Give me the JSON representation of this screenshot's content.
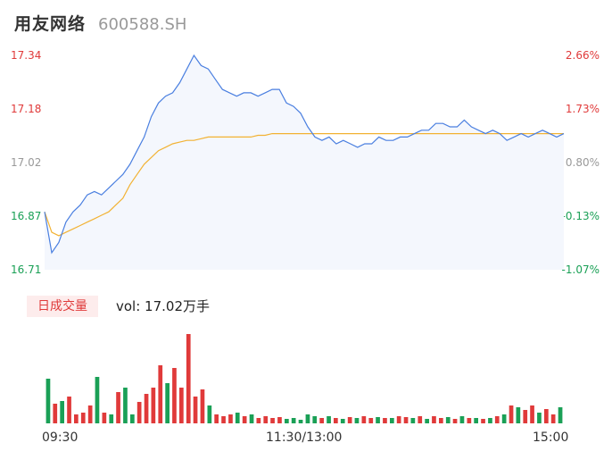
{
  "header": {
    "name": "用友网络",
    "code": "600588.SH"
  },
  "colors": {
    "up": "#e03a3a",
    "down": "#1aa056",
    "neutral": "#999999",
    "price_line": "#4a7fe0",
    "avg_line": "#f2b233",
    "area_fill": "#f4f7fd"
  },
  "volume": {
    "tab_label": "日成交量",
    "summary": "vol: 17.02万手"
  },
  "chart_data": {
    "type": "line",
    "title": "",
    "price_axis": {
      "ticks": [
        "17.34",
        "17.18",
        "17.02",
        "16.87",
        "16.71"
      ],
      "ylim": [
        16.71,
        17.34
      ]
    },
    "pct_axis": {
      "ticks": [
        "2.66%",
        "1.73%",
        "0.80%",
        "-0.13%",
        "-1.07%"
      ]
    },
    "x_ticks": [
      "09:30",
      "11:30/13:00",
      "15:00"
    ],
    "series": [
      {
        "key": "price",
        "values": [
          16.88,
          16.76,
          16.79,
          16.85,
          16.88,
          16.9,
          16.93,
          16.94,
          16.93,
          16.95,
          16.97,
          16.99,
          17.02,
          17.06,
          17.1,
          17.16,
          17.2,
          17.22,
          17.23,
          17.26,
          17.3,
          17.34,
          17.31,
          17.3,
          17.27,
          17.24,
          17.23,
          17.22,
          17.23,
          17.23,
          17.22,
          17.23,
          17.24,
          17.24,
          17.2,
          17.19,
          17.17,
          17.13,
          17.1,
          17.09,
          17.1,
          17.08,
          17.09,
          17.08,
          17.07,
          17.08,
          17.08,
          17.1,
          17.09,
          17.09,
          17.1,
          17.1,
          17.11,
          17.12,
          17.12,
          17.14,
          17.14,
          17.13,
          17.13,
          17.15,
          17.13,
          17.12,
          17.11,
          17.12,
          17.11,
          17.09,
          17.1,
          17.11,
          17.1,
          17.11,
          17.12,
          17.11,
          17.1,
          17.11
        ]
      },
      {
        "key": "average",
        "values": [
          16.88,
          16.82,
          16.81,
          16.82,
          16.83,
          16.84,
          16.85,
          16.86,
          16.87,
          16.88,
          16.9,
          16.92,
          16.96,
          16.99,
          17.02,
          17.04,
          17.06,
          17.07,
          17.08,
          17.085,
          17.09,
          17.09,
          17.095,
          17.1,
          17.1,
          17.1,
          17.1,
          17.1,
          17.1,
          17.1,
          17.105,
          17.105,
          17.11,
          17.11,
          17.11,
          17.11,
          17.11,
          17.11,
          17.11,
          17.11,
          17.11,
          17.11,
          17.11,
          17.11,
          17.11,
          17.11,
          17.11,
          17.11,
          17.11,
          17.11,
          17.11,
          17.11,
          17.11,
          17.11,
          17.11,
          17.11,
          17.11,
          17.11,
          17.11,
          17.11,
          17.11,
          17.11,
          17.11,
          17.11,
          17.11,
          17.11,
          17.11,
          17.11,
          17.11,
          17.11,
          17.11,
          17.11,
          17.11,
          17.11
        ]
      }
    ],
    "volume_bars": [
      {
        "v": 50,
        "d": "down"
      },
      {
        "v": 22,
        "d": "up"
      },
      {
        "v": 25,
        "d": "down"
      },
      {
        "v": 30,
        "d": "up"
      },
      {
        "v": 10,
        "d": "up"
      },
      {
        "v": 12,
        "d": "up"
      },
      {
        "v": 20,
        "d": "up"
      },
      {
        "v": 52,
        "d": "down"
      },
      {
        "v": 12,
        "d": "up"
      },
      {
        "v": 10,
        "d": "down"
      },
      {
        "v": 35,
        "d": "up"
      },
      {
        "v": 40,
        "d": "down"
      },
      {
        "v": 10,
        "d": "down"
      },
      {
        "v": 24,
        "d": "up"
      },
      {
        "v": 33,
        "d": "up"
      },
      {
        "v": 40,
        "d": "up"
      },
      {
        "v": 65,
        "d": "up"
      },
      {
        "v": 45,
        "d": "down"
      },
      {
        "v": 62,
        "d": "up"
      },
      {
        "v": 40,
        "d": "up"
      },
      {
        "v": 100,
        "d": "up"
      },
      {
        "v": 30,
        "d": "up"
      },
      {
        "v": 38,
        "d": "up"
      },
      {
        "v": 20,
        "d": "down"
      },
      {
        "v": 10,
        "d": "up"
      },
      {
        "v": 8,
        "d": "up"
      },
      {
        "v": 10,
        "d": "up"
      },
      {
        "v": 12,
        "d": "down"
      },
      {
        "v": 8,
        "d": "up"
      },
      {
        "v": 10,
        "d": "down"
      },
      {
        "v": 6,
        "d": "up"
      },
      {
        "v": 8,
        "d": "up"
      },
      {
        "v": 6,
        "d": "up"
      },
      {
        "v": 7,
        "d": "up"
      },
      {
        "v": 5,
        "d": "down"
      },
      {
        "v": 6,
        "d": "down"
      },
      {
        "v": 4,
        "d": "down"
      },
      {
        "v": 10,
        "d": "down"
      },
      {
        "v": 8,
        "d": "down"
      },
      {
        "v": 6,
        "d": "up"
      },
      {
        "v": 8,
        "d": "down"
      },
      {
        "v": 6,
        "d": "up"
      },
      {
        "v": 5,
        "d": "down"
      },
      {
        "v": 7,
        "d": "up"
      },
      {
        "v": 6,
        "d": "down"
      },
      {
        "v": 8,
        "d": "up"
      },
      {
        "v": 6,
        "d": "up"
      },
      {
        "v": 7,
        "d": "down"
      },
      {
        "v": 6,
        "d": "up"
      },
      {
        "v": 6,
        "d": "down"
      },
      {
        "v": 8,
        "d": "up"
      },
      {
        "v": 7,
        "d": "up"
      },
      {
        "v": 6,
        "d": "down"
      },
      {
        "v": 8,
        "d": "up"
      },
      {
        "v": 5,
        "d": "down"
      },
      {
        "v": 8,
        "d": "up"
      },
      {
        "v": 6,
        "d": "up"
      },
      {
        "v": 7,
        "d": "down"
      },
      {
        "v": 5,
        "d": "up"
      },
      {
        "v": 8,
        "d": "down"
      },
      {
        "v": 6,
        "d": "up"
      },
      {
        "v": 6,
        "d": "down"
      },
      {
        "v": 5,
        "d": "up"
      },
      {
        "v": 6,
        "d": "down"
      },
      {
        "v": 8,
        "d": "up"
      },
      {
        "v": 10,
        "d": "down"
      },
      {
        "v": 20,
        "d": "up"
      },
      {
        "v": 18,
        "d": "down"
      },
      {
        "v": 15,
        "d": "up"
      },
      {
        "v": 20,
        "d": "up"
      },
      {
        "v": 12,
        "d": "down"
      },
      {
        "v": 16,
        "d": "up"
      },
      {
        "v": 10,
        "d": "up"
      },
      {
        "v": 18,
        "d": "down"
      }
    ]
  }
}
